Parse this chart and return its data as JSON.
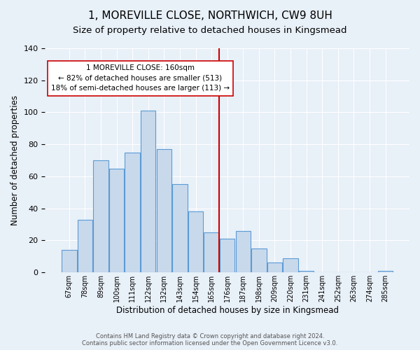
{
  "title": "1, MOREVILLE CLOSE, NORTHWICH, CW9 8UH",
  "subtitle": "Size of property relative to detached houses in Kingsmead",
  "xlabel": "Distribution of detached houses by size in Kingsmead",
  "ylabel": "Number of detached properties",
  "categories": [
    "67sqm",
    "78sqm",
    "89sqm",
    "100sqm",
    "111sqm",
    "122sqm",
    "132sqm",
    "143sqm",
    "154sqm",
    "165sqm",
    "176sqm",
    "187sqm",
    "198sqm",
    "209sqm",
    "220sqm",
    "231sqm",
    "241sqm",
    "252sqm",
    "263sqm",
    "274sqm",
    "285sqm"
  ],
  "values": [
    14,
    33,
    70,
    65,
    75,
    101,
    77,
    55,
    38,
    25,
    21,
    26,
    15,
    6,
    9,
    1,
    0,
    0,
    0,
    0,
    1
  ],
  "bar_color": "#c8d9ec",
  "bar_edge_color": "#5b9bd5",
  "background_color": "#e8f0f8",
  "vline_x": 9.5,
  "vline_color": "#cc0000",
  "annotation_text": "1 MOREVILLE CLOSE: 160sqm\n← 82% of detached houses are smaller (513)\n18% of semi-detached houses are larger (113) →",
  "annotation_box_color": "#ffffff",
  "annotation_box_edge": "#cc0000",
  "ylim": [
    0,
    140
  ],
  "yticks": [
    0,
    20,
    40,
    60,
    80,
    100,
    120,
    140
  ],
  "footer": "Contains HM Land Registry data © Crown copyright and database right 2024.\nContains public sector information licensed under the Open Government Licence v3.0.",
  "title_fontsize": 11,
  "subtitle_fontsize": 9.5,
  "ylabel_fontsize": 8.5,
  "xlabel_fontsize": 8.5,
  "annot_fontsize": 7.5,
  "footer_fontsize": 6.0
}
